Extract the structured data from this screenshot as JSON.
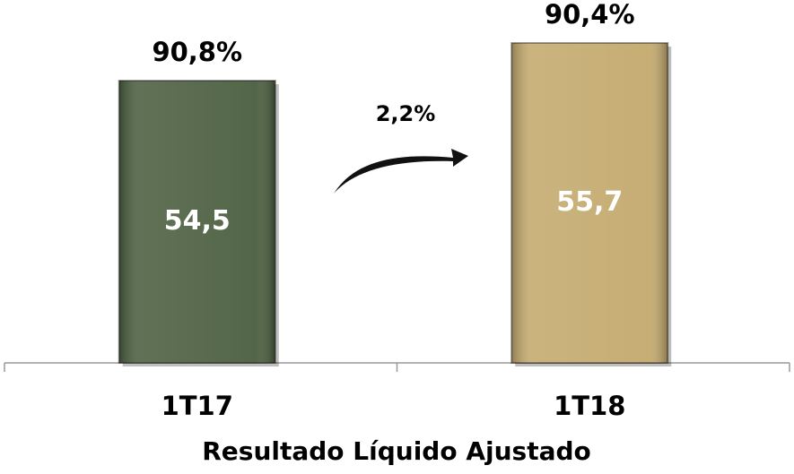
{
  "chart_data": {
    "type": "bar",
    "categories": [
      "1T17",
      "1T18"
    ],
    "values": [
      54.5,
      55.7
    ],
    "value_labels": [
      "54,5",
      "55,7"
    ],
    "colors": [
      "#4b5e3f",
      "#c3a96d"
    ],
    "annotations": [
      "90,8%",
      "90,4%"
    ],
    "growth_label": "2,2%",
    "x_label": "Resultado Líquido Ajustado",
    "ylim": [
      45.5,
      57
    ]
  }
}
